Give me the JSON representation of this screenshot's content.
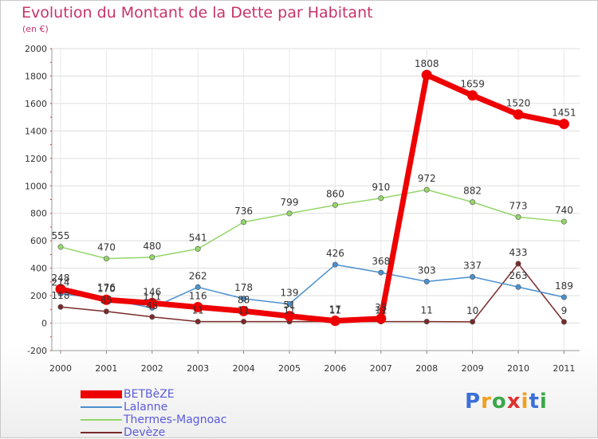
{
  "header": {
    "title": "Evolution du Montant de la Dette par Habitant",
    "subtitle": "(en €)"
  },
  "logo": {
    "text": "Proxiti",
    "letters": [
      "P",
      "r",
      "o",
      "x",
      "i",
      "t",
      "i"
    ],
    "colors": [
      "#3b6fd8",
      "#f0a020",
      "#3aa84a",
      "#e03030",
      "#f0a020",
      "#3b6fd8",
      "#3aa84a"
    ]
  },
  "chart_data": {
    "type": "line",
    "x": [
      "2000",
      "2001",
      "2002",
      "2003",
      "2004",
      "2005",
      "2006",
      "2007",
      "2008",
      "2009",
      "2010",
      "2011"
    ],
    "ylim": [
      -200,
      2000
    ],
    "yticks": [
      -200,
      0,
      200,
      400,
      600,
      800,
      1000,
      1200,
      1400,
      1600,
      1800,
      2000
    ],
    "grid": true,
    "legend_position": "bottom-left",
    "series": [
      {
        "name": "BETBèZE",
        "color": "#ee0000",
        "width": 7,
        "values": [
          248,
          170,
          146,
          116,
          88,
          51,
          17,
          33,
          1808,
          1659,
          1520,
          1451
        ],
        "labels": [
          "248",
          "170",
          "146",
          "116",
          "88",
          "51",
          "17",
          "33",
          "1808",
          "1659",
          "1520",
          "1451"
        ]
      },
      {
        "name": "Lalanne",
        "color": "#4a90d0",
        "width": 1.5,
        "values": [
          214,
          176,
          111,
          262,
          178,
          139,
          426,
          368,
          303,
          337,
          263,
          189
        ],
        "labels": [
          "214",
          "176",
          "111",
          "262",
          "178",
          "139",
          "426",
          "368",
          "303",
          "337",
          "263",
          "189"
        ]
      },
      {
        "name": "Thermes-Magnoac",
        "color": "#94d66a",
        "width": 1.5,
        "values": [
          555,
          470,
          480,
          541,
          736,
          799,
          860,
          910,
          972,
          882,
          773,
          740
        ],
        "labels": [
          "555",
          "470",
          "480",
          "541",
          "736",
          "799",
          "860",
          "910",
          "972",
          "882",
          "773",
          "740"
        ]
      },
      {
        "name": "Devèze",
        "color": "#7a2a2a",
        "width": 1.5,
        "values": [
          118,
          85,
          45,
          11,
          11,
          11,
          11,
          11,
          11,
          10,
          433,
          9
        ],
        "labels": [
          "118",
          "85",
          "45",
          "11",
          "11",
          "11",
          "11",
          "11",
          "11",
          "10",
          "433",
          "9"
        ]
      }
    ]
  }
}
